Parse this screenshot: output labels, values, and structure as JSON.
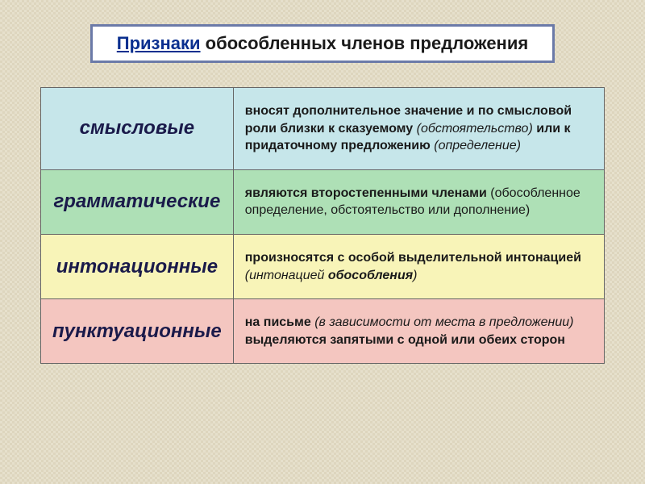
{
  "title": {
    "underlined": "Признаки",
    "rest": " обособленных членов предложения",
    "border_color": "#6b7aa8",
    "bg_color": "#ffffff",
    "underlined_color": "#0a2f8f",
    "rest_color": "#1a1a1a",
    "fontsize": 22
  },
  "background": {
    "canvas_color": "#e6e0cc",
    "pattern_color": "#c8bea0"
  },
  "table": {
    "border_color": "#666666",
    "label_fontsize": 24,
    "label_color": "#1a1a4a",
    "desc_fontsize": 16,
    "desc_color": "#1a1a1a",
    "rows": [
      {
        "label": "смысловые",
        "bg": "#c6e6ea",
        "desc_parts": [
          {
            "text": "вносят дополнительное значение и по смысловой роли близки к сказуемому ",
            "bold": true
          },
          {
            "text": "(обстоятельство)",
            "bold": false,
            "italic": true
          },
          {
            "text": " или к придаточному предложению ",
            "bold": true
          },
          {
            "text": "(определение)",
            "bold": false,
            "italic": true
          }
        ]
      },
      {
        "label": "грамматические",
        "bg": "#aee0b6",
        "desc_parts": [
          {
            "text": "являются второстепенными членами ",
            "bold": true
          },
          {
            "text": "(обособленное определение, обстоятельство или дополнение)",
            "bold": false
          }
        ]
      },
      {
        "label": "интонационные",
        "bg": "#f8f4b8",
        "desc_parts": [
          {
            "text": "произносятся с особой выделительной интонацией ",
            "bold": true
          },
          {
            "text": "(интонацией ",
            "italic": true
          },
          {
            "text": "обособления",
            "italic": true,
            "bold": true
          },
          {
            "text": ")",
            "italic": true
          }
        ]
      },
      {
        "label": "пунктуационные",
        "bg": "#f4c6c0",
        "desc_parts": [
          {
            "text": " на письме ",
            "bold": true
          },
          {
            "text": "(в зависимости от места в предложении)",
            "italic": true
          },
          {
            "text": " выделяются запятыми с одной или обеих сторон",
            "bold": true
          }
        ]
      }
    ]
  }
}
